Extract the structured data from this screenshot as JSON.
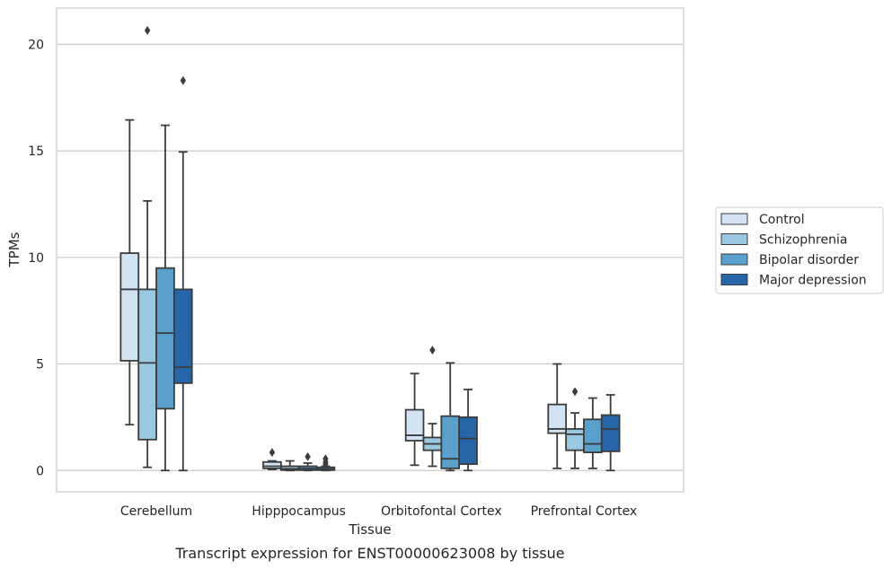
{
  "chart_data": {
    "type": "box",
    "caption": "Transcript expression for ENST00000623008 by tissue",
    "xlabel": "Tissue",
    "ylabel": "TPMs",
    "ylim": [
      -1,
      21.7
    ],
    "yticks": [
      0,
      5,
      10,
      15,
      20
    ],
    "grid": true,
    "legend_position": "right",
    "categories": [
      "Cerebellum",
      "Hipppocampus",
      "Orbitofontal Cortex",
      "Prefrontal Cortex"
    ],
    "series": [
      {
        "name": "Control",
        "color": "#d2e3f3",
        "boxes": [
          {
            "whislo": 2.15,
            "q1": 5.15,
            "med": 8.5,
            "q3": 10.2,
            "whishi": 16.45,
            "fliers": []
          },
          {
            "whislo": 0.05,
            "q1": 0.1,
            "med": 0.2,
            "q3": 0.4,
            "whishi": 0.45,
            "fliers": [
              0.85
            ]
          },
          {
            "whislo": 0.25,
            "q1": 1.4,
            "med": 1.65,
            "q3": 2.85,
            "whishi": 4.55,
            "fliers": []
          },
          {
            "whislo": 0.1,
            "q1": 1.75,
            "med": 1.95,
            "q3": 3.1,
            "whishi": 5.0,
            "fliers": []
          }
        ]
      },
      {
        "name": "Schizophrenia",
        "color": "#9ac8e0",
        "boxes": [
          {
            "whislo": 0.15,
            "q1": 1.45,
            "med": 5.05,
            "q3": 8.5,
            "whishi": 12.65,
            "fliers": [
              20.65
            ]
          },
          {
            "whislo": 0.0,
            "q1": 0.02,
            "med": 0.08,
            "q3": 0.2,
            "whishi": 0.45,
            "fliers": []
          },
          {
            "whislo": 0.2,
            "q1": 0.95,
            "med": 1.25,
            "q3": 1.55,
            "whishi": 2.2,
            "fliers": [
              5.65
            ]
          },
          {
            "whislo": 0.1,
            "q1": 0.95,
            "med": 1.7,
            "q3": 1.95,
            "whishi": 2.7,
            "fliers": [
              3.7
            ]
          }
        ]
      },
      {
        "name": "Bipolar disorder",
        "color": "#5aa0cd",
        "boxes": [
          {
            "whislo": 0.0,
            "q1": 2.9,
            "med": 6.45,
            "q3": 9.5,
            "whishi": 16.2,
            "fliers": []
          },
          {
            "whislo": 0.0,
            "q1": 0.02,
            "med": 0.1,
            "q3": 0.2,
            "whishi": 0.35,
            "fliers": [
              0.65
            ]
          },
          {
            "whislo": 0.0,
            "q1": 0.1,
            "med": 0.55,
            "q3": 2.55,
            "whishi": 5.05,
            "fliers": []
          },
          {
            "whislo": 0.1,
            "q1": 0.85,
            "med": 1.25,
            "q3": 2.4,
            "whishi": 3.4,
            "fliers": []
          }
        ]
      },
      {
        "name": "Major depression",
        "color": "#2565a8",
        "boxes": [
          {
            "whislo": 0.0,
            "q1": 4.1,
            "med": 4.85,
            "q3": 8.5,
            "whishi": 14.95,
            "fliers": [
              18.3
            ]
          },
          {
            "whislo": 0.0,
            "q1": 0.02,
            "med": 0.05,
            "q3": 0.15,
            "whishi": 0.2,
            "fliers": [
              0.3,
              0.4,
              0.55
            ]
          },
          {
            "whislo": 0.0,
            "q1": 0.3,
            "med": 1.5,
            "q3": 2.5,
            "whishi": 3.8,
            "fliers": []
          },
          {
            "whislo": 0.0,
            "q1": 0.9,
            "med": 1.95,
            "q3": 2.6,
            "whishi": 3.55,
            "fliers": []
          }
        ]
      }
    ]
  }
}
